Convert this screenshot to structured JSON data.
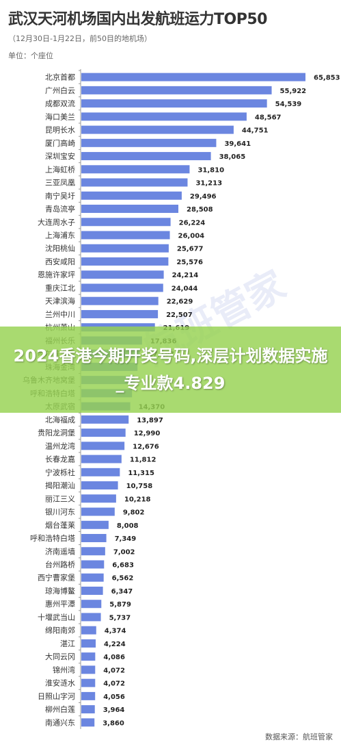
{
  "header": {
    "title": "武汉天河机场国内出发航班运力TOP50",
    "subtitle": "（12月30日-1月22日，前50目的地机场）",
    "unit": "单位：个座位"
  },
  "footer": {
    "source": "数据来源：航班管家"
  },
  "overlay": {
    "banner_text": "2024香港今期开奖号码,深层计划数据实施_专业款4.829",
    "watermark": "航班管家"
  },
  "colors": {
    "bar": "#6b86e0",
    "banner": "#96d250"
  },
  "chart_data": {
    "type": "bar",
    "orientation": "horizontal",
    "title": "武汉天河机场国内出发航班运力TOP50",
    "subtitle": "（12月30日-1月22日，前50目的地机场）",
    "ylabel": "单位：个座位",
    "xlim": [
      0,
      65853
    ],
    "categories": [
      "北京首都",
      "广州白云",
      "成都双流",
      "海口美兰",
      "昆明长水",
      "厦门高崎",
      "深圳宝安",
      "上海虹桥",
      "三亚凤凰",
      "南宁吴圩",
      "青岛流亭",
      "大连周水子",
      "上海浦东",
      "沈阳桃仙",
      "西安咸阳",
      "恩施许家坪",
      "重庆江北",
      "天津滨海",
      "兰州中川",
      "杭州萧山",
      "福州长乐",
      "哈尔滨太平",
      "珠海金湾",
      "乌鲁木齐地窝堡",
      "呼和浩特白塔",
      "太原武宿",
      "北海福成",
      "贵阳龙洞堡",
      "温州龙湾",
      "长春龙嘉",
      "宁波栎社",
      "揭阳潮汕",
      "丽江三义",
      "银川河东",
      "烟台蓬莱",
      "呼和浩特白塔",
      "济南遥墙",
      "台州路桥",
      "西宁曹家堡",
      "琼海博鳌",
      "惠州平潭",
      "十堰武当山",
      "绵阳南郊",
      "湛江",
      "大同云冈",
      "锦州湾",
      "淮安涟水",
      "日照山字河",
      "柳州白莲",
      "南通兴东"
    ],
    "values": [
      65853,
      55922,
      54539,
      48567,
      44751,
      39641,
      38065,
      31810,
      31213,
      29496,
      28508,
      26224,
      26004,
      25677,
      25576,
      24214,
      24044,
      22629,
      22507,
      21619,
      17836,
      17197,
      16500,
      15800,
      14900,
      14370,
      13897,
      12990,
      12676,
      11812,
      11315,
      10758,
      10218,
      9802,
      8008,
      7349,
      7002,
      6683,
      6562,
      6347,
      5879,
      5737,
      4374,
      4224,
      4086,
      4072,
      4072,
      4056,
      3964,
      3860
    ],
    "value_labels": [
      "65,853",
      "55,922",
      "54,539",
      "48,567",
      "44,751",
      "39,641",
      "38,065",
      "31,810",
      "31,213",
      "29,496",
      "28,508",
      "26,224",
      "26,004",
      "25,677",
      "25,576",
      "24,214",
      "24,044",
      "22,629",
      "22,507",
      "21,619",
      "17,836",
      "17,197",
      "",
      "",
      "",
      "14,370",
      "13,897",
      "12,990",
      "12,676",
      "11,812",
      "11,315",
      "10,758",
      "10,218",
      "9,802",
      "8,008",
      "7,349",
      "7,002",
      "6,683",
      "6,562",
      "6,347",
      "5,879",
      "5,737",
      "4,374",
      "4,224",
      "4,086",
      "4,072",
      "4,072",
      "4,056",
      "3,964",
      "3,860"
    ],
    "grid": false,
    "legend": "none"
  }
}
